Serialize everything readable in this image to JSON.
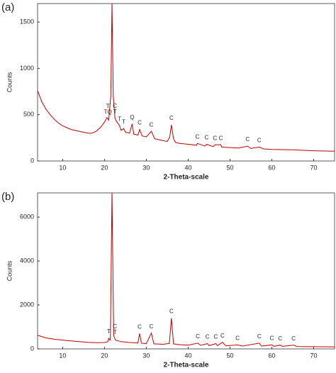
{
  "chart_data": [
    {
      "type": "line",
      "label": "(a)",
      "xlabel": "2-Theta-scale",
      "ylabel": "Counts",
      "color": "#c00000",
      "xlim": [
        4,
        75
      ],
      "xticks": [
        10,
        20,
        30,
        40,
        50,
        60,
        70
      ],
      "ylim": [
        0,
        1700
      ],
      "yticks": [
        0,
        500,
        1000,
        1500
      ],
      "x": [
        4,
        5,
        6,
        7,
        8,
        9,
        10,
        11,
        12,
        13,
        14,
        15,
        16,
        17,
        18,
        19,
        20,
        20.6,
        21,
        21.5,
        21.8,
        22.1,
        22.5,
        23,
        23.6,
        24,
        24.6,
        25,
        26,
        26.6,
        27,
        28,
        28.4,
        29,
        30,
        31.2,
        32,
        33,
        34,
        35,
        35.6,
        36,
        36.5,
        37,
        38,
        40,
        42,
        42.2,
        44,
        44.4,
        46,
        46.4,
        47.8,
        48,
        50,
        52,
        54.2,
        55,
        57,
        58,
        60,
        65,
        70,
        75
      ],
      "values": [
        760,
        640,
        560,
        500,
        450,
        410,
        380,
        360,
        340,
        330,
        320,
        310,
        300,
        300,
        320,
        360,
        420,
        470,
        440,
        700,
        1700,
        700,
        460,
        420,
        380,
        330,
        350,
        310,
        300,
        400,
        290,
        280,
        340,
        270,
        260,
        320,
        240,
        230,
        220,
        210,
        260,
        390,
        240,
        200,
        190,
        180,
        170,
        190,
        160,
        180,
        155,
        175,
        175,
        150,
        145,
        140,
        160,
        135,
        150,
        130,
        125,
        120,
        110,
        105
      ],
      "annotations": [
        {
          "x": 22.5,
          "text": [
            "C",
            "T"
          ]
        },
        {
          "x": 20.8,
          "text": [
            "T",
            "TQ"
          ]
        },
        {
          "x": 23.6,
          "text": [
            "T"
          ]
        },
        {
          "x": 24.6,
          "text": [
            "T"
          ]
        },
        {
          "x": 26.6,
          "text": [
            "Q"
          ]
        },
        {
          "x": 28.4,
          "text": [
            "C"
          ]
        },
        {
          "x": 31.2,
          "text": [
            "C"
          ]
        },
        {
          "x": 36,
          "text": [
            "C"
          ]
        },
        {
          "x": 42.2,
          "text": [
            "C"
          ]
        },
        {
          "x": 44.4,
          "text": [
            "C"
          ]
        },
        {
          "x": 46.4,
          "text": [
            "C"
          ]
        },
        {
          "x": 47.8,
          "text": [
            "C"
          ]
        },
        {
          "x": 54.2,
          "text": [
            "C"
          ]
        },
        {
          "x": 57,
          "text": [
            "C"
          ]
        }
      ]
    },
    {
      "type": "line",
      "label": "(b)",
      "xlabel": "2-Theta-scale",
      "ylabel": "Counts",
      "color": "#c00000",
      "xlim": [
        4,
        75
      ],
      "xticks": [
        10,
        20,
        30,
        40,
        50,
        60,
        70
      ],
      "ylim": [
        0,
        7100
      ],
      "yticks": [
        0,
        2000,
        4000,
        6000
      ],
      "x": [
        4,
        5,
        6,
        8,
        10,
        12,
        14,
        16,
        18,
        20,
        20.8,
        21,
        21.4,
        21.8,
        22.2,
        22.6,
        24,
        26,
        28,
        28.4,
        28.8,
        30,
        31.2,
        31.8,
        34,
        35.5,
        36,
        36.5,
        38,
        40,
        42.3,
        43,
        44.6,
        45,
        46.6,
        47,
        48.2,
        49,
        51.8,
        53,
        57,
        57.5,
        60,
        60.5,
        62,
        62.5,
        65.2,
        66,
        70,
        75
      ],
      "values": [
        620,
        560,
        500,
        440,
        400,
        360,
        330,
        300,
        280,
        290,
        330,
        480,
        400,
        7100,
        600,
        400,
        330,
        290,
        270,
        700,
        260,
        240,
        720,
        230,
        210,
        250,
        1400,
        230,
        190,
        170,
        260,
        160,
        240,
        150,
        240,
        150,
        300,
        140,
        180,
        130,
        260,
        130,
        180,
        120,
        170,
        115,
        170,
        110,
        100,
        95
      ],
      "annotations": [
        {
          "x": 22.5,
          "text": [
            "C",
            "T"
          ]
        },
        {
          "x": 21,
          "text": [
            "T"
          ]
        },
        {
          "x": 28.4,
          "text": [
            "C"
          ]
        },
        {
          "x": 31.2,
          "text": [
            "C"
          ]
        },
        {
          "x": 36,
          "text": [
            "C"
          ]
        },
        {
          "x": 42.3,
          "text": [
            "C"
          ]
        },
        {
          "x": 44.6,
          "text": [
            "C"
          ]
        },
        {
          "x": 46.6,
          "text": [
            "C"
          ]
        },
        {
          "x": 48.2,
          "text": [
            "C"
          ]
        },
        {
          "x": 51.8,
          "text": [
            "C"
          ]
        },
        {
          "x": 57,
          "text": [
            "C"
          ]
        },
        {
          "x": 60,
          "text": [
            "C"
          ]
        },
        {
          "x": 62,
          "text": [
            "C"
          ]
        },
        {
          "x": 65.2,
          "text": [
            "C"
          ]
        }
      ]
    }
  ]
}
